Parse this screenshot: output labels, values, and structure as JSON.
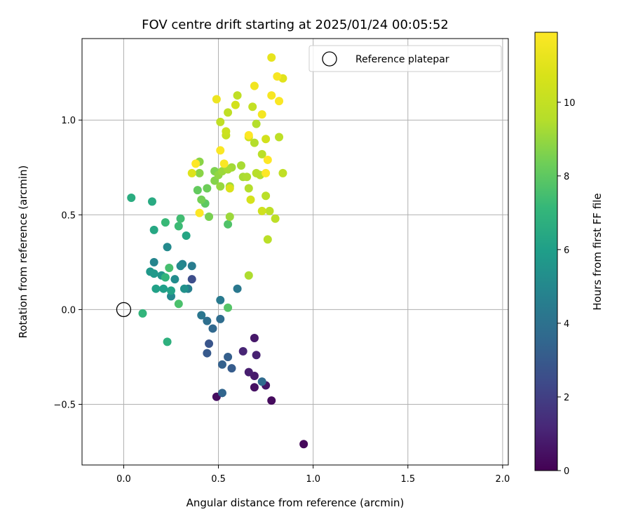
{
  "chart_data": {
    "type": "scatter",
    "title": "FOV centre drift starting at 2025/01/24 00:05:52",
    "xlabel": "Angular distance from reference (arcmin)",
    "ylabel": "Rotation from reference (arcmin)",
    "xlim": [
      -0.22,
      2.03
    ],
    "ylim": [
      -0.82,
      1.43
    ],
    "x_ticks": [
      0.0,
      0.5,
      1.0,
      1.5,
      2.0
    ],
    "x_tick_labels": [
      "0.0",
      "0.5",
      "1.0",
      "1.5",
      "2.0"
    ],
    "y_ticks": [
      -0.5,
      0.0,
      0.5,
      1.0
    ],
    "y_tick_labels": [
      "−0.5",
      "0.0",
      "0.5",
      "1.0"
    ],
    "grid": true,
    "legend": {
      "placement": "top-right",
      "entries": [
        {
          "label": "Reference platepar",
          "marker": "hollow-circle",
          "x": 0.0,
          "y": 0.0
        }
      ]
    },
    "colorbar": {
      "label": "Hours from first FF file",
      "colormap": "viridis",
      "range": [
        0,
        11.9
      ],
      "ticks": [
        0,
        2,
        4,
        6,
        8,
        10
      ],
      "tick_labels": [
        "0",
        "2",
        "4",
        "6",
        "8",
        "10"
      ]
    },
    "series": [
      {
        "points": [
          [
            0.95,
            -0.71,
            0.2
          ],
          [
            0.78,
            -0.48,
            0.3
          ],
          [
            0.49,
            -0.46,
            0.4
          ],
          [
            0.75,
            -0.4,
            0.6
          ],
          [
            0.69,
            -0.41,
            0.5
          ],
          [
            0.69,
            -0.35,
            0.8
          ],
          [
            0.66,
            -0.33,
            0.9
          ],
          [
            0.7,
            -0.24,
            1.0
          ],
          [
            0.63,
            -0.22,
            1.1
          ],
          [
            0.69,
            -0.15,
            0.7
          ],
          [
            0.36,
            0.16,
            2.5
          ],
          [
            0.45,
            -0.18,
            2.8
          ],
          [
            0.44,
            -0.23,
            3.0
          ],
          [
            0.57,
            -0.31,
            3.1
          ],
          [
            0.52,
            -0.29,
            3.3
          ],
          [
            0.52,
            -0.44,
            3.5
          ],
          [
            0.73,
            -0.38,
            3.7
          ],
          [
            0.55,
            -0.25,
            3.2
          ],
          [
            0.47,
            -0.1,
            3.6
          ],
          [
            0.51,
            -0.05,
            3.8
          ],
          [
            0.44,
            -0.06,
            3.9
          ],
          [
            0.41,
            -0.03,
            4.2
          ],
          [
            0.51,
            0.05,
            4.4
          ],
          [
            0.36,
            0.23,
            4.5
          ],
          [
            0.34,
            0.11,
            4.6
          ],
          [
            0.31,
            0.24,
            4.8
          ],
          [
            0.16,
            0.25,
            4.9
          ],
          [
            0.6,
            0.11,
            4.3
          ],
          [
            0.25,
            0.07,
            5.0
          ],
          [
            0.23,
            0.33,
            5.1
          ],
          [
            0.27,
            0.16,
            5.2
          ],
          [
            0.3,
            0.23,
            5.0
          ],
          [
            0.32,
            0.11,
            5.4
          ],
          [
            0.2,
            0.18,
            5.6
          ],
          [
            0.14,
            0.2,
            5.7
          ],
          [
            0.16,
            0.19,
            5.8
          ],
          [
            0.21,
            0.11,
            6.0
          ],
          [
            0.17,
            0.11,
            6.1
          ],
          [
            0.33,
            0.39,
            6.3
          ],
          [
            0.25,
            0.1,
            6.2
          ],
          [
            0.15,
            0.57,
            6.5
          ],
          [
            0.04,
            0.59,
            6.6
          ],
          [
            0.16,
            0.42,
            6.4
          ],
          [
            0.23,
            -0.17,
            6.8
          ],
          [
            0.22,
            0.17,
            7.0
          ],
          [
            0.1,
            -0.02,
            7.0
          ],
          [
            0.22,
            0.46,
            7.2
          ],
          [
            0.29,
            0.44,
            7.3
          ],
          [
            0.3,
            0.48,
            7.4
          ],
          [
            0.24,
            0.22,
            7.5
          ],
          [
            0.29,
            0.03,
            7.6
          ],
          [
            0.55,
            0.45,
            7.7
          ],
          [
            0.55,
            0.01,
            7.8
          ],
          [
            0.43,
            0.56,
            8.0
          ],
          [
            0.39,
            0.63,
            8.1
          ],
          [
            0.44,
            0.64,
            8.3
          ],
          [
            0.41,
            0.58,
            8.4
          ],
          [
            0.45,
            0.49,
            8.5
          ],
          [
            0.48,
            0.73,
            8.6
          ],
          [
            0.48,
            0.68,
            8.7
          ],
          [
            0.4,
            0.78,
            8.8
          ],
          [
            0.4,
            0.72,
            8.8
          ],
          [
            0.5,
            0.71,
            8.9
          ],
          [
            0.51,
            0.65,
            9.0
          ],
          [
            0.52,
            0.73,
            9.1
          ],
          [
            0.56,
            0.49,
            9.1
          ],
          [
            0.56,
            0.65,
            9.2
          ],
          [
            0.57,
            0.75,
            9.2
          ],
          [
            0.55,
            0.74,
            9.3
          ],
          [
            0.63,
            0.7,
            9.3
          ],
          [
            0.62,
            0.76,
            9.3
          ],
          [
            0.65,
            0.7,
            9.4
          ],
          [
            0.66,
            0.18,
            9.4
          ],
          [
            0.66,
            0.64,
            9.5
          ],
          [
            0.69,
            0.88,
            9.5
          ],
          [
            0.7,
            0.98,
            9.5
          ],
          [
            0.7,
            0.72,
            9.6
          ],
          [
            0.72,
            0.71,
            9.6
          ],
          [
            0.73,
            0.82,
            9.7
          ],
          [
            0.75,
            0.6,
            9.7
          ],
          [
            0.76,
            0.37,
            9.7
          ],
          [
            0.77,
            0.52,
            9.8
          ],
          [
            0.8,
            0.48,
            9.8
          ],
          [
            0.82,
            0.91,
            9.8
          ],
          [
            0.84,
            0.72,
            9.9
          ],
          [
            0.51,
            0.99,
            9.9
          ],
          [
            0.55,
            1.04,
            9.9
          ],
          [
            0.6,
            1.13,
            9.9
          ],
          [
            0.68,
            1.07,
            10.0
          ],
          [
            0.54,
            0.92,
            10.1
          ],
          [
            0.54,
            0.94,
            10.3
          ],
          [
            0.59,
            1.08,
            10.5
          ],
          [
            0.66,
            0.91,
            10.4
          ],
          [
            0.75,
            0.9,
            10.5
          ],
          [
            0.73,
            0.52,
            10.4
          ],
          [
            0.67,
            0.58,
            10.6
          ],
          [
            0.56,
            0.64,
            10.8
          ],
          [
            0.36,
            0.72,
            10.9
          ],
          [
            0.84,
            1.22,
            11.0
          ],
          [
            0.78,
            1.33,
            11.2
          ],
          [
            0.49,
            1.11,
            11.4
          ],
          [
            0.69,
            1.18,
            11.5
          ],
          [
            0.73,
            1.03,
            11.6
          ],
          [
            0.81,
            1.23,
            11.7
          ],
          [
            0.78,
            1.13,
            11.7
          ],
          [
            0.82,
            1.1,
            11.8
          ],
          [
            0.51,
            0.84,
            11.8
          ],
          [
            0.53,
            0.77,
            11.8
          ],
          [
            0.38,
            0.77,
            11.9
          ],
          [
            0.4,
            0.51,
            11.9
          ],
          [
            0.75,
            0.72,
            11.9
          ],
          [
            0.76,
            0.79,
            11.9
          ],
          [
            0.66,
            0.92,
            11.9
          ]
        ]
      }
    ]
  }
}
